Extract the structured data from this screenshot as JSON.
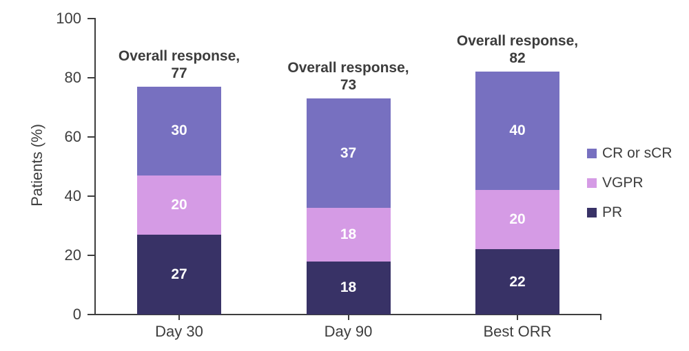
{
  "chart_data": {
    "type": "bar",
    "stacked": true,
    "title": "",
    "ylabel": "Patients (%)",
    "xlabel": "",
    "ylim": [
      0,
      100
    ],
    "yticks": [
      0,
      20,
      40,
      60,
      80,
      100
    ],
    "grid": false,
    "categories": [
      "Day 30",
      "Day 90",
      "Best ORR"
    ],
    "series": [
      {
        "name": "PR",
        "color": "#383266",
        "values": [
          27,
          18,
          22
        ]
      },
      {
        "name": "VGPR",
        "color": "#D59BE5",
        "values": [
          20,
          18,
          20
        ]
      },
      {
        "name": "CR or sCR",
        "color": "#7770C0",
        "values": [
          30,
          37,
          40
        ]
      }
    ],
    "totals": [
      77,
      73,
      82
    ],
    "annotation_prefix": "Overall response,",
    "legend": {
      "position": "right",
      "order": [
        "CR or sCR",
        "VGPR",
        "PR"
      ]
    },
    "colors": {
      "axis": "#3d3d3d",
      "value_label": "#ffffff",
      "background": "#ffffff"
    }
  }
}
